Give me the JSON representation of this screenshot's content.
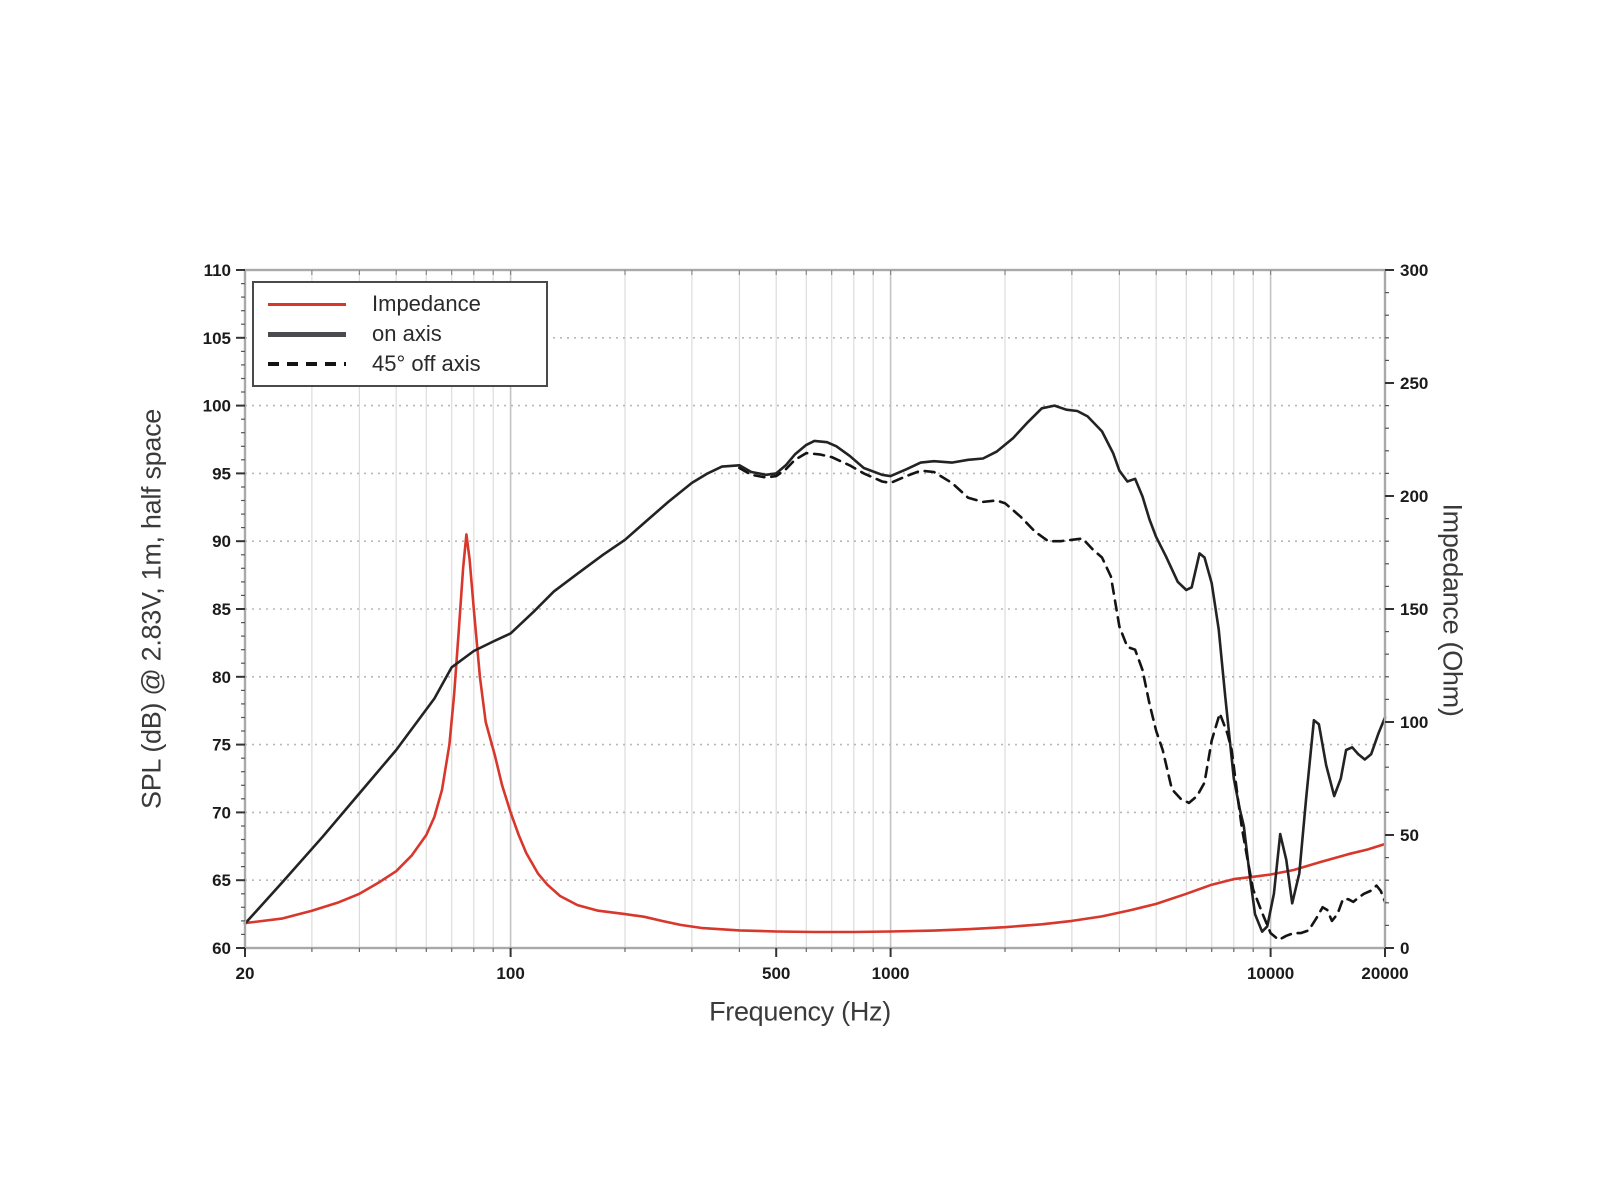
{
  "chart_data": {
    "type": "line",
    "title": "",
    "xlabel": "Frequency (Hz)",
    "ylabel_left": "SPL (dB) @ 2.83V, 1m, half space",
    "ylabel_right": "Impedance (Ohm)",
    "x_axis": {
      "scale": "log",
      "min": 20,
      "max": 20000,
      "labeled_ticks": [
        {
          "v": 20,
          "label": "20"
        },
        {
          "v": 100,
          "label": "100"
        },
        {
          "v": 500,
          "label": "500"
        },
        {
          "v": 1000,
          "label": "1000"
        },
        {
          "v": 10000,
          "label": "10000"
        },
        {
          "v": 20000,
          "label": "20000"
        }
      ],
      "grid_major": [
        100,
        1000,
        10000
      ],
      "grid_minor": [
        30,
        40,
        50,
        60,
        70,
        80,
        90,
        200,
        300,
        400,
        500,
        600,
        700,
        800,
        900,
        2000,
        3000,
        4000,
        5000,
        6000,
        7000,
        8000,
        9000
      ]
    },
    "y_left": {
      "min": 60,
      "max": 110,
      "tick_step": 5,
      "minor_step": 1,
      "ticks": [
        60,
        65,
        70,
        75,
        80,
        85,
        90,
        95,
        100,
        105,
        110
      ]
    },
    "y_right": {
      "min": 0,
      "max": 300,
      "tick_step": 50,
      "minor_step": 10,
      "ticks": [
        0,
        50,
        100,
        150,
        200,
        250,
        300
      ]
    },
    "grid": {
      "horizontal": "dotted every 5 dB",
      "vertical": "log decades solid light gray"
    },
    "colors": {
      "impedance": "#d8372c",
      "on_axis": "#232325",
      "off_axis": "#141414",
      "grid_minor": "#dcdcdc",
      "grid_major": "#c3c3c3",
      "spine": "#a9a9a9",
      "tick": "#333333",
      "tick_label": "#1b1b1b",
      "background": "#ffffff"
    },
    "legend": {
      "position": "top-left",
      "items": [
        {
          "label": "Impedance",
          "style": "solid",
          "color": "#d8372c",
          "axis": "right"
        },
        {
          "label": "on axis",
          "style": "solid",
          "color": "#4a4a50",
          "axis": "left"
        },
        {
          "label": "45° off axis",
          "style": "dashed",
          "color": "#141414",
          "axis": "left"
        }
      ]
    },
    "series": [
      {
        "name": "Impedance",
        "axis": "right",
        "unit": "Ohm",
        "color": "#d8372c",
        "dash": null,
        "points": [
          [
            20,
            11
          ],
          [
            25,
            13
          ],
          [
            30,
            16.5
          ],
          [
            35,
            20
          ],
          [
            40,
            24
          ],
          [
            45,
            29
          ],
          [
            50,
            34
          ],
          [
            55,
            41
          ],
          [
            60,
            50
          ],
          [
            63,
            58
          ],
          [
            66,
            70
          ],
          [
            69,
            90
          ],
          [
            71,
            112
          ],
          [
            73,
            140
          ],
          [
            75,
            168
          ],
          [
            76.5,
            183
          ],
          [
            78,
            172
          ],
          [
            80,
            150
          ],
          [
            83,
            120
          ],
          [
            86,
            100
          ],
          [
            91,
            85
          ],
          [
            95,
            72
          ],
          [
            100,
            60
          ],
          [
            105,
            50
          ],
          [
            110,
            42
          ],
          [
            118,
            33
          ],
          [
            125,
            28
          ],
          [
            135,
            23
          ],
          [
            150,
            19
          ],
          [
            170,
            16.5
          ],
          [
            200,
            15
          ],
          [
            225,
            13.8
          ],
          [
            250,
            12
          ],
          [
            280,
            10.2
          ],
          [
            320,
            8.8
          ],
          [
            400,
            7.8
          ],
          [
            500,
            7.3
          ],
          [
            630,
            7.1
          ],
          [
            800,
            7.1
          ],
          [
            1000,
            7.3
          ],
          [
            1300,
            7.7
          ],
          [
            1600,
            8.3
          ],
          [
            2000,
            9.2
          ],
          [
            2500,
            10.5
          ],
          [
            3000,
            12
          ],
          [
            3600,
            14
          ],
          [
            4300,
            16.8
          ],
          [
            5000,
            19.5
          ],
          [
            6000,
            24
          ],
          [
            7000,
            28
          ],
          [
            8000,
            30.5
          ],
          [
            9000,
            31.5
          ],
          [
            10000,
            32.5
          ],
          [
            11500,
            34.5
          ],
          [
            13500,
            38
          ],
          [
            16000,
            41.5
          ],
          [
            18000,
            43.6
          ],
          [
            20000,
            46
          ]
        ]
      },
      {
        "name": "on axis",
        "axis": "left",
        "unit": "dB",
        "color": "#232325",
        "dash": null,
        "points": [
          [
            20,
            61.8
          ],
          [
            25,
            64.8
          ],
          [
            32,
            68.2
          ],
          [
            40,
            71.4
          ],
          [
            50,
            74.6
          ],
          [
            63,
            78.4
          ],
          [
            70,
            80.7
          ],
          [
            80,
            81.9
          ],
          [
            90,
            82.6
          ],
          [
            100,
            83.2
          ],
          [
            115,
            84.8
          ],
          [
            130,
            86.3
          ],
          [
            150,
            87.6
          ],
          [
            175,
            89.0
          ],
          [
            200,
            90.1
          ],
          [
            230,
            91.6
          ],
          [
            260,
            92.9
          ],
          [
            300,
            94.3
          ],
          [
            330,
            95.0
          ],
          [
            360,
            95.5
          ],
          [
            400,
            95.6
          ],
          [
            430,
            95.1
          ],
          [
            470,
            94.9
          ],
          [
            500,
            95.0
          ],
          [
            530,
            95.6
          ],
          [
            560,
            96.4
          ],
          [
            600,
            97.1
          ],
          [
            630,
            97.4
          ],
          [
            680,
            97.3
          ],
          [
            720,
            97.0
          ],
          [
            780,
            96.3
          ],
          [
            850,
            95.4
          ],
          [
            950,
            94.9
          ],
          [
            1000,
            94.8
          ],
          [
            1100,
            95.3
          ],
          [
            1200,
            95.8
          ],
          [
            1300,
            95.9
          ],
          [
            1450,
            95.8
          ],
          [
            1600,
            96.0
          ],
          [
            1750,
            96.1
          ],
          [
            1900,
            96.6
          ],
          [
            2100,
            97.6
          ],
          [
            2300,
            98.8
          ],
          [
            2500,
            99.8
          ],
          [
            2700,
            100.0
          ],
          [
            2900,
            99.7
          ],
          [
            3100,
            99.6
          ],
          [
            3300,
            99.2
          ],
          [
            3600,
            98.1
          ],
          [
            3850,
            96.5
          ],
          [
            4000,
            95.2
          ],
          [
            4200,
            94.4
          ],
          [
            4400,
            94.6
          ],
          [
            4600,
            93.3
          ],
          [
            4800,
            91.6
          ],
          [
            5000,
            90.3
          ],
          [
            5300,
            88.9
          ],
          [
            5700,
            87.0
          ],
          [
            6000,
            86.4
          ],
          [
            6200,
            86.6
          ],
          [
            6500,
            89.1
          ],
          [
            6700,
            88.8
          ],
          [
            7000,
            86.9
          ],
          [
            7300,
            83.5
          ],
          [
            7600,
            78.5
          ],
          [
            8000,
            72.5
          ],
          [
            8300,
            70.2
          ],
          [
            8500,
            69.0
          ],
          [
            8800,
            65.5
          ],
          [
            9100,
            62.5
          ],
          [
            9500,
            61.2
          ],
          [
            9800,
            61.6
          ],
          [
            10200,
            64.0
          ],
          [
            10600,
            68.4
          ],
          [
            11000,
            66.5
          ],
          [
            11400,
            63.3
          ],
          [
            11900,
            65.5
          ],
          [
            12400,
            71.0
          ],
          [
            13000,
            76.8
          ],
          [
            13400,
            76.5
          ],
          [
            14000,
            73.5
          ],
          [
            14700,
            71.2
          ],
          [
            15300,
            72.5
          ],
          [
            15800,
            74.6
          ],
          [
            16400,
            74.8
          ],
          [
            17000,
            74.3
          ],
          [
            17700,
            73.9
          ],
          [
            18400,
            74.3
          ],
          [
            19200,
            75.8
          ],
          [
            20000,
            77.0
          ]
        ]
      },
      {
        "name": "45° off axis",
        "axis": "left",
        "unit": "dB",
        "color": "#141414",
        "dash": [
          10,
          7
        ],
        "points": [
          [
            400,
            95.4
          ],
          [
            430,
            94.9
          ],
          [
            470,
            94.7
          ],
          [
            500,
            94.8
          ],
          [
            530,
            95.3
          ],
          [
            560,
            96.0
          ],
          [
            600,
            96.5
          ],
          [
            650,
            96.4
          ],
          [
            700,
            96.2
          ],
          [
            780,
            95.6
          ],
          [
            850,
            95.0
          ],
          [
            950,
            94.4
          ],
          [
            1000,
            94.3
          ],
          [
            1100,
            94.8
          ],
          [
            1200,
            95.2
          ],
          [
            1300,
            95.1
          ],
          [
            1450,
            94.3
          ],
          [
            1600,
            93.2
          ],
          [
            1750,
            92.9
          ],
          [
            1900,
            93.0
          ],
          [
            2000,
            92.8
          ],
          [
            2200,
            91.8
          ],
          [
            2400,
            90.7
          ],
          [
            2600,
            90.0
          ],
          [
            2800,
            90.0
          ],
          [
            3000,
            90.1
          ],
          [
            3200,
            90.2
          ],
          [
            3400,
            89.4
          ],
          [
            3600,
            88.8
          ],
          [
            3800,
            87.4
          ],
          [
            4000,
            83.7
          ],
          [
            4200,
            82.2
          ],
          [
            4400,
            82.0
          ],
          [
            4600,
            80.5
          ],
          [
            4800,
            78.0
          ],
          [
            5000,
            76.0
          ],
          [
            5200,
            74.6
          ],
          [
            5500,
            71.7
          ],
          [
            5800,
            71.0
          ],
          [
            6100,
            70.7
          ],
          [
            6400,
            71.2
          ],
          [
            6700,
            72.2
          ],
          [
            7000,
            75.3
          ],
          [
            7350,
            77.3
          ],
          [
            7700,
            75.8
          ],
          [
            7900,
            74.6
          ],
          [
            8200,
            71.0
          ],
          [
            8400,
            68.9
          ],
          [
            8700,
            66.5
          ],
          [
            9000,
            64.3
          ],
          [
            9500,
            62.6
          ],
          [
            10000,
            61.1
          ],
          [
            10500,
            60.6
          ],
          [
            11000,
            60.9
          ],
          [
            11500,
            61.1
          ],
          [
            12000,
            61.1
          ],
          [
            12600,
            61.3
          ],
          [
            13200,
            62.2
          ],
          [
            13700,
            63.0
          ],
          [
            14100,
            62.8
          ],
          [
            14500,
            62.0
          ],
          [
            15000,
            62.5
          ],
          [
            15500,
            63.6
          ],
          [
            16000,
            63.6
          ],
          [
            16500,
            63.4
          ],
          [
            17000,
            63.7
          ],
          [
            17600,
            64.0
          ],
          [
            18300,
            64.2
          ],
          [
            19000,
            64.6
          ],
          [
            19500,
            64.2
          ],
          [
            20000,
            63.4
          ]
        ]
      }
    ]
  }
}
